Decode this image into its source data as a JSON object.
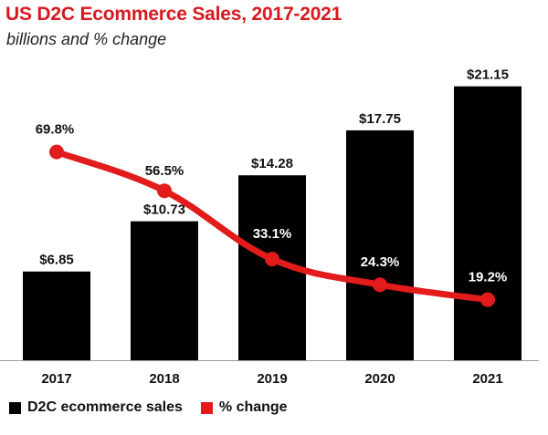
{
  "title": "US D2C Ecommerce Sales, 2017-2021",
  "subtitle": "billions and % change",
  "colors": {
    "bar": "#000000",
    "line": "#e21b1b",
    "title": "#d71920"
  },
  "legend": {
    "sales_label": "D2C ecommerce sales",
    "change_label": "% change"
  },
  "chart_data": {
    "type": "bar",
    "categories": [
      "2017",
      "2018",
      "2019",
      "2020",
      "2021"
    ],
    "series": [
      {
        "name": "D2C ecommerce sales",
        "type": "bar",
        "values": [
          6.85,
          10.73,
          14.28,
          17.75,
          21.15
        ],
        "labels": [
          "$6.85",
          "$10.73",
          "$14.28",
          "$17.75",
          "$21.15"
        ]
      },
      {
        "name": "% change",
        "type": "line",
        "values": [
          69.8,
          56.5,
          33.1,
          24.3,
          19.2
        ],
        "labels": [
          "69.8%",
          "56.5%",
          "33.1%",
          "24.3%",
          "19.2%"
        ]
      }
    ],
    "title": "US D2C Ecommerce Sales, 2017-2021",
    "subtitle": "billions and % change",
    "xlabel": "",
    "ylabel": "",
    "grid": false,
    "legend_position": "bottom-left"
  }
}
